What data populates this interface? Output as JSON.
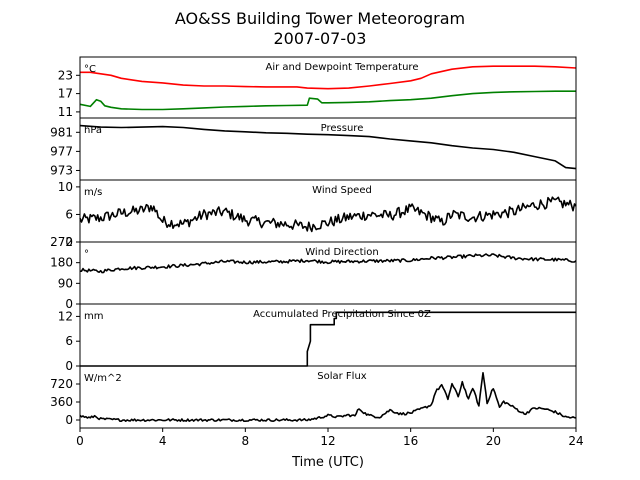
{
  "figure": {
    "title_line1": "AO&SS Building Tower Meteorogram",
    "title_line2": "2007-07-03",
    "xlabel": "Time (UTC)"
  },
  "chart_data": [
    {
      "type": "line",
      "title": "Air and Dewpoint Temperature",
      "unit": "°C",
      "x_unit": "hours UTC",
      "xlim": [
        0,
        24
      ],
      "ylim": [
        9,
        29
      ],
      "yticks": [
        11,
        17,
        23
      ],
      "xticks": [
        0,
        4,
        8,
        12,
        16,
        20,
        24
      ],
      "series": [
        {
          "color": "#ff0000",
          "x": [
            0,
            0.5,
            1,
            1.5,
            2,
            3,
            4,
            5,
            6,
            7,
            8,
            9,
            10,
            10.5,
            11,
            12,
            13,
            14,
            15,
            16,
            16.5,
            17,
            18,
            19,
            20,
            21,
            22,
            23,
            24
          ],
          "y": [
            24,
            24,
            23.5,
            23,
            22,
            21,
            20.5,
            19.8,
            19.5,
            19.5,
            19.3,
            19.2,
            19.2,
            19.2,
            18.8,
            18.6,
            18.8,
            19.5,
            20.3,
            21.2,
            22,
            23.5,
            25,
            25.8,
            26,
            26,
            26,
            25.8,
            25.4
          ]
        },
        {
          "color": "#008000",
          "x": [
            0,
            0.5,
            0.8,
            1,
            1.2,
            1.5,
            2,
            3,
            4,
            5,
            6,
            7,
            8,
            9,
            10,
            11,
            11.1,
            11.5,
            11.7,
            12,
            13,
            14,
            15,
            16,
            17,
            18,
            19,
            20,
            21,
            22,
            23,
            24
          ],
          "y": [
            13.5,
            12.8,
            15,
            14.5,
            13,
            12.5,
            12,
            11.8,
            11.8,
            12,
            12.3,
            12.6,
            12.8,
            13,
            13.1,
            13.2,
            15.5,
            15.2,
            14,
            14,
            14.1,
            14.3,
            14.7,
            15,
            15.5,
            16.3,
            17,
            17.4,
            17.6,
            17.7,
            17.8,
            17.8
          ]
        }
      ]
    },
    {
      "type": "line",
      "title": "Pressure",
      "unit": "hPa",
      "x_unit": "hours UTC",
      "xlim": [
        0,
        24
      ],
      "ylim": [
        971,
        984
      ],
      "yticks": [
        973,
        977,
        981
      ],
      "series": [
        {
          "color": "#000000",
          "x": [
            0,
            1,
            2,
            3,
            4,
            5,
            6,
            7,
            8,
            9,
            10,
            11,
            12,
            13,
            14,
            15,
            16,
            17,
            18,
            19,
            20,
            21,
            22,
            23,
            23.5,
            24
          ],
          "y": [
            982.4,
            982.1,
            982.0,
            982.1,
            982.2,
            982.0,
            981.6,
            981.3,
            981.1,
            980.9,
            980.8,
            980.6,
            980.5,
            980.3,
            980.1,
            979.6,
            979.2,
            978.8,
            978.2,
            977.7,
            977.4,
            976.8,
            975.9,
            975.0,
            973.6,
            973.4
          ]
        }
      ]
    },
    {
      "type": "line",
      "title": "Wind Speed",
      "unit": "m/s",
      "x_unit": "hours UTC",
      "xlim": [
        0,
        24
      ],
      "ylim": [
        2,
        11
      ],
      "yticks": [
        2,
        6,
        10
      ],
      "series": [
        {
          "color": "#000000",
          "x": [
            0,
            1,
            2,
            3,
            3.5,
            4,
            5,
            6,
            7,
            8,
            9,
            10,
            11,
            12,
            13,
            14,
            15,
            16,
            17,
            17.5,
            18,
            19,
            20,
            21,
            22,
            23,
            24
          ],
          "y": [
            5.2,
            5.5,
            6.2,
            6.6,
            7.2,
            5.0,
            4.6,
            6.0,
            6.4,
            5.2,
            4.8,
            4.6,
            4.2,
            4.8,
            5.6,
            6.0,
            5.8,
            6.8,
            5.6,
            4.8,
            6.0,
            5.6,
            6.0,
            6.4,
            7.4,
            7.8,
            7.2
          ]
        }
      ],
      "noise": 0.8
    },
    {
      "type": "line",
      "title": "Wind Direction",
      "unit": "°",
      "x_unit": "hours UTC",
      "xlim": [
        0,
        24
      ],
      "ylim": [
        0,
        270
      ],
      "yticks": [
        0,
        90,
        180,
        270
      ],
      "series": [
        {
          "color": "#000000",
          "x": [
            0,
            1,
            2,
            3,
            4,
            5,
            6,
            7,
            8,
            9,
            10,
            11,
            12,
            13,
            14,
            15,
            16,
            17,
            18,
            19,
            20,
            21,
            22,
            23,
            24
          ],
          "y": [
            148,
            142,
            155,
            158,
            162,
            168,
            176,
            185,
            182,
            183,
            185,
            190,
            183,
            185,
            187,
            188,
            190,
            200,
            203,
            210,
            212,
            200,
            195,
            193,
            188
          ]
        }
      ],
      "noise": 7
    },
    {
      "type": "line",
      "title": "Accumulated Precipitation Since 0Z",
      "unit": "mm",
      "x_unit": "hours UTC",
      "xlim": [
        0,
        24
      ],
      "ylim": [
        0,
        15
      ],
      "yticks": [
        0,
        6,
        12
      ],
      "series": [
        {
          "color": "#000000",
          "x": [
            0,
            11.0,
            11.0,
            11.15,
            11.15,
            12.3,
            12.3,
            12.4,
            12.4,
            24
          ],
          "y": [
            0,
            0,
            3.5,
            6,
            10,
            10,
            11.5,
            11.5,
            13,
            13
          ]
        }
      ]
    },
    {
      "type": "line",
      "title": "Solar Flux",
      "unit": "W/m^2",
      "x_unit": "hours UTC",
      "xlim": [
        0,
        24
      ],
      "ylim": [
        -160,
        1080
      ],
      "yticks": [
        0,
        360,
        720
      ],
      "series": [
        {
          "color": "#000000",
          "x": [
            0,
            0.5,
            0.7,
            1,
            2,
            3,
            4,
            5,
            6,
            7,
            8,
            9,
            10,
            11,
            11.5,
            12,
            12.5,
            13,
            13.3,
            13.5,
            13.8,
            14,
            14.5,
            15,
            15.5,
            16,
            16.5,
            17,
            17.2,
            17.5,
            17.8,
            18,
            18.3,
            18.5,
            18.8,
            19,
            19.3,
            19.5,
            19.7,
            20,
            20.3,
            20.5,
            21,
            21.5,
            22,
            22.5,
            23,
            23.5,
            24
          ],
          "y": [
            80,
            40,
            80,
            20,
            0,
            0,
            0,
            0,
            0,
            0,
            0,
            0,
            0,
            0,
            40,
            90,
            60,
            100,
            80,
            230,
            130,
            90,
            60,
            200,
            120,
            140,
            220,
            300,
            560,
            700,
            420,
            720,
            470,
            760,
            400,
            650,
            280,
            950,
            350,
            640,
            250,
            370,
            250,
            120,
            240,
            220,
            160,
            60,
            40
          ]
        }
      ],
      "noise": 25
    }
  ]
}
